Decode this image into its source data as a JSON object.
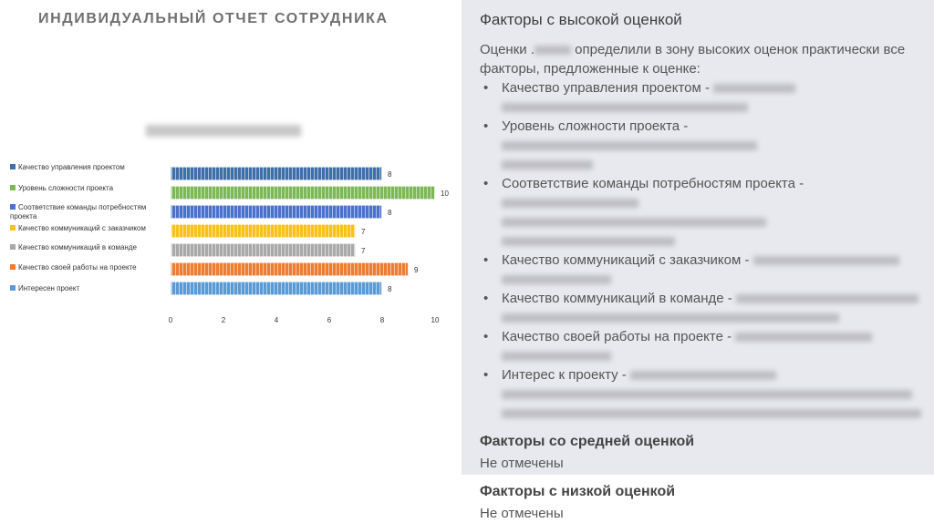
{
  "title": "ИНДИВИДУАЛЬНЫЙ ОТЧЕТ СОТРУДНИКА",
  "chart_data": {
    "type": "bar",
    "orientation": "horizontal",
    "title": "",
    "categories": [
      "Качество управления проектом",
      "Уровень сложности проекта",
      "Соответствие команды потребностям проекта",
      "Качество коммуникаций с заказчиком",
      "Качество коммуникаций в команде",
      "Качество своей работы на проекте",
      "Интересен проект"
    ],
    "values": [
      8,
      10,
      8,
      7,
      7,
      9,
      8
    ],
    "colors": [
      "#3f6fa8",
      "#7cb956",
      "#4a72cc",
      "#f8c21a",
      "#a9a9a9",
      "#ed7d31",
      "#5b9bd5"
    ],
    "xlim": [
      0,
      10
    ],
    "xticks": [
      "0",
      "2",
      "4",
      "6",
      "8",
      "10"
    ],
    "legend": "left"
  },
  "right": {
    "high_heading": "Факторы с высокой оценкой",
    "intro_a": "Оценки .",
    "intro_b": " определили в зону высоких оценок практически все факторы, предложенные к оценке:",
    "items": [
      "Качество управления проектом - ",
      "Уровень сложности проекта - ",
      "Соответствие команды потребностям проекта - ",
      "Качество коммуникаций с заказчиком - ",
      "Качество коммуникаций в команде - ",
      "Качество своей работы на проекте - ",
      "Интерес к проекту - "
    ],
    "mid_heading": "Факторы со средней оценкой",
    "mid_text": "Не отмечены",
    "low_heading": "Факторы с низкой оценкой",
    "low_text": "Не отмечены"
  }
}
